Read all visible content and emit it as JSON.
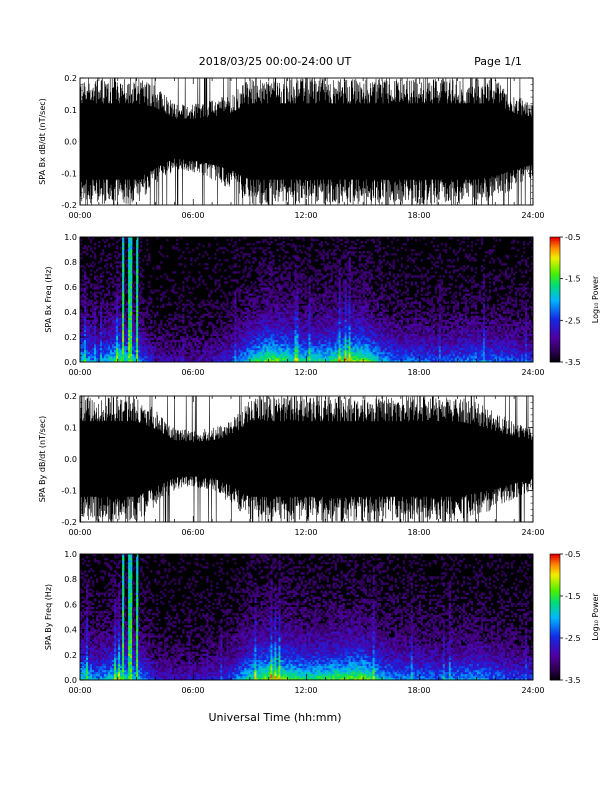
{
  "header": {
    "title": "2018/03/25  00:00-24:00 UT",
    "page": "Page 1/1"
  },
  "xaxis_label": "Universal Time (hh:mm)",
  "chart_data": [
    {
      "type": "line",
      "ylabel": "SPA Bx dB/dt (nT/sec)",
      "ylim": [
        -0.2,
        0.2
      ],
      "yticks": [
        "0.2",
        "0.1",
        "0.0",
        "-0.1",
        "-0.2"
      ],
      "xlim": [
        "00:00",
        "24:00"
      ],
      "xticks": [
        "00:00",
        "06:00",
        "12:00",
        "18:00",
        "24:00"
      ],
      "envelope_hours": [
        0,
        1,
        2,
        3,
        4,
        5,
        6,
        7,
        8,
        9,
        10,
        11,
        12,
        13,
        14,
        15,
        16,
        17,
        18,
        19,
        20,
        21,
        22,
        23,
        24
      ],
      "envelope_upper": [
        0.2,
        0.2,
        0.2,
        0.2,
        0.18,
        0.12,
        0.12,
        0.13,
        0.15,
        0.2,
        0.2,
        0.2,
        0.2,
        0.2,
        0.2,
        0.2,
        0.2,
        0.2,
        0.2,
        0.2,
        0.2,
        0.2,
        0.2,
        0.15,
        0.12
      ],
      "envelope_lower": [
        -0.2,
        -0.2,
        -0.2,
        -0.2,
        -0.14,
        -0.09,
        -0.1,
        -0.12,
        -0.15,
        -0.2,
        -0.2,
        -0.2,
        -0.2,
        -0.2,
        -0.2,
        -0.2,
        -0.2,
        -0.2,
        -0.2,
        -0.2,
        -0.2,
        -0.2,
        -0.18,
        -0.15,
        -0.12
      ]
    },
    {
      "type": "heatmap",
      "ylabel": "SPA Bx Freq (Hz)",
      "ylim": [
        0,
        1.0
      ],
      "yticks": [
        "1.0",
        "0.8",
        "0.6",
        "0.4",
        "0.2",
        "0.0"
      ],
      "xlim": [
        "00:00",
        "24:00"
      ],
      "xticks": [
        "00:00",
        "06:00",
        "12:00",
        "18:00",
        "24:00"
      ],
      "colorbar": {
        "label": "Log₁₀ Power",
        "range": [
          -3.5,
          -0.5
        ],
        "ticks": [
          "-0.5",
          "-1.5",
          "-2.5",
          "-3.5"
        ]
      },
      "activity_hours": [
        0,
        1,
        2,
        3,
        4,
        5,
        6,
        7,
        8,
        9,
        10,
        11,
        12,
        13,
        14,
        15,
        16,
        17,
        18,
        19,
        20,
        21,
        22,
        23,
        24
      ],
      "activity_level": [
        0.7,
        0.5,
        0.8,
        0.6,
        0.3,
        0.25,
        0.25,
        0.3,
        0.4,
        0.7,
        0.9,
        0.8,
        0.7,
        0.75,
        0.85,
        0.9,
        0.6,
        0.5,
        0.5,
        0.45,
        0.5,
        0.55,
        0.5,
        0.45,
        0.4
      ],
      "bright_streaks_hours": [
        2.3,
        2.65,
        3.05
      ]
    },
    {
      "type": "line",
      "ylabel": "SPA By dB/dt (nT/sec)",
      "ylim": [
        -0.2,
        0.2
      ],
      "yticks": [
        "0.2",
        "0.1",
        "0.0",
        "-0.1",
        "-0.2"
      ],
      "xlim": [
        "00:00",
        "24:00"
      ],
      "xticks": [
        "00:00",
        "06:00",
        "12:00",
        "18:00",
        "24:00"
      ],
      "envelope_hours": [
        0,
        1,
        2,
        3,
        4,
        5,
        6,
        7,
        8,
        9,
        10,
        11,
        12,
        13,
        14,
        15,
        16,
        17,
        18,
        19,
        20,
        21,
        22,
        23,
        24
      ],
      "envelope_upper": [
        0.2,
        0.2,
        0.2,
        0.2,
        0.16,
        0.1,
        0.09,
        0.1,
        0.12,
        0.2,
        0.2,
        0.2,
        0.2,
        0.2,
        0.2,
        0.2,
        0.2,
        0.2,
        0.2,
        0.2,
        0.2,
        0.18,
        0.15,
        0.12,
        0.1
      ],
      "envelope_lower": [
        -0.2,
        -0.2,
        -0.2,
        -0.2,
        -0.15,
        -0.1,
        -0.09,
        -0.1,
        -0.14,
        -0.2,
        -0.2,
        -0.2,
        -0.2,
        -0.2,
        -0.2,
        -0.2,
        -0.2,
        -0.2,
        -0.2,
        -0.2,
        -0.2,
        -0.18,
        -0.16,
        -0.13,
        -0.1
      ]
    },
    {
      "type": "heatmap",
      "ylabel": "SPA By Freq (Hz)",
      "ylim": [
        0,
        1.0
      ],
      "yticks": [
        "1.0",
        "0.8",
        "0.6",
        "0.4",
        "0.2",
        "0.0"
      ],
      "xlim": [
        "00:00",
        "24:00"
      ],
      "xticks": [
        "00:00",
        "06:00",
        "12:00",
        "18:00",
        "24:00"
      ],
      "colorbar": {
        "label": "Log₁₀ Power",
        "range": [
          -3.5,
          -0.5
        ],
        "ticks": [
          "-0.5",
          "-1.5",
          "-2.5",
          "-3.5"
        ]
      },
      "activity_hours": [
        0,
        1,
        2,
        3,
        4,
        5,
        6,
        7,
        8,
        9,
        10,
        11,
        12,
        13,
        14,
        15,
        16,
        17,
        18,
        19,
        20,
        21,
        22,
        23,
        24
      ],
      "activity_level": [
        0.75,
        0.55,
        0.8,
        0.65,
        0.35,
        0.3,
        0.3,
        0.35,
        0.45,
        0.75,
        0.9,
        0.85,
        0.75,
        0.8,
        0.85,
        0.9,
        0.65,
        0.55,
        0.55,
        0.5,
        0.55,
        0.6,
        0.5,
        0.45,
        0.4
      ],
      "bright_streaks_hours": [
        2.3,
        2.65,
        3.05
      ]
    }
  ]
}
